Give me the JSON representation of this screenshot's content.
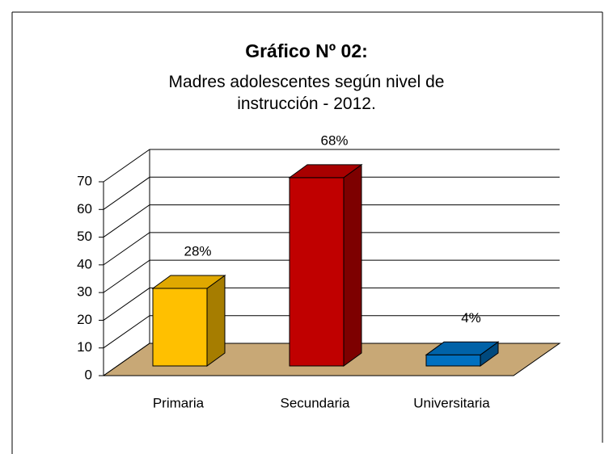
{
  "chart_data": {
    "type": "bar3d",
    "title": "Gráfico Nº 02:",
    "subtitle": "Madres adolescentes según nivel de instrucción - 2012.",
    "categories": [
      "Primaria",
      "Secundaria",
      "Universitaria"
    ],
    "values": [
      28,
      68,
      4
    ],
    "value_labels": [
      "28%",
      "68%",
      "4%"
    ],
    "colors": [
      "#FFC000",
      "#C00000",
      "#0070C0"
    ],
    "ylim": [
      0,
      70
    ],
    "yticks": [
      0,
      10,
      20,
      30,
      40,
      50,
      60,
      70
    ],
    "grid": true,
    "floor_color": "#C8A876"
  }
}
